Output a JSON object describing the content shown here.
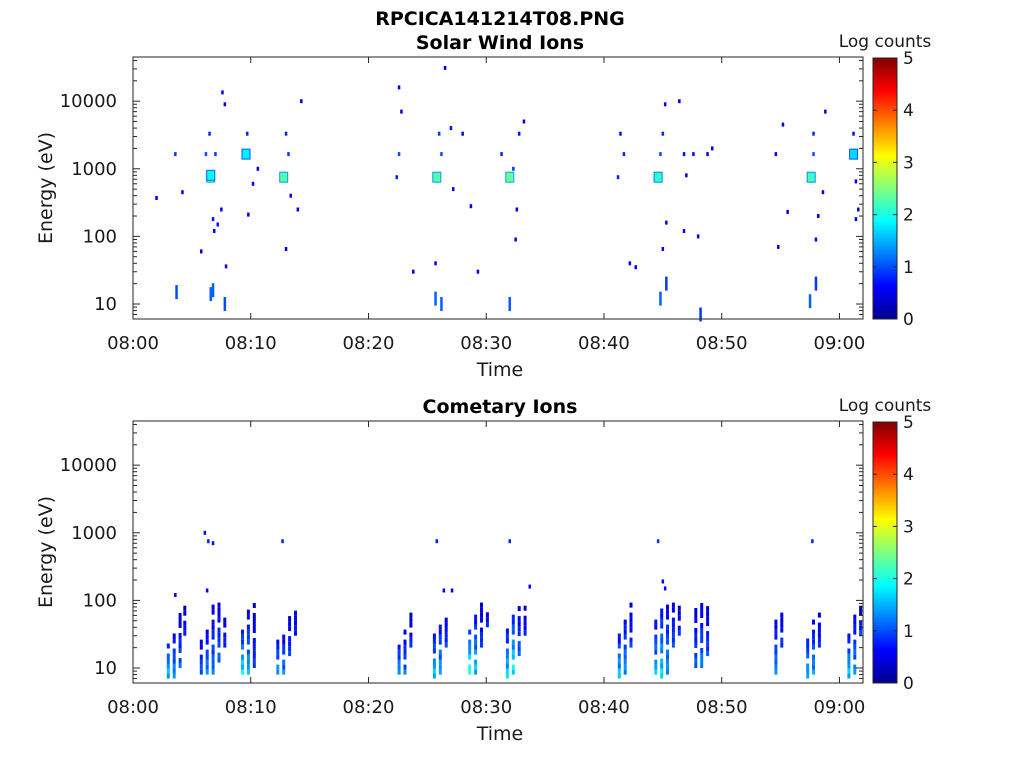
{
  "figure_title": "RPCICA141214T08.PNG",
  "chart_data": [
    {
      "type": "heatmap",
      "title": "Solar Wind Ions",
      "xlabel": "Time",
      "ylabel": "Energy (eV)",
      "y_scale": "log",
      "xlim": [
        "08:00",
        "09:02"
      ],
      "ylim": [
        6,
        45000
      ],
      "x_ticks": [
        "08:00",
        "08:10",
        "08:20",
        "08:30",
        "08:40",
        "08:50",
        "09:00"
      ],
      "y_ticks": [
        "10",
        "100",
        "1000",
        "10000"
      ],
      "colorbar": {
        "label": "Log counts",
        "range": [
          0,
          5
        ],
        "ticks": [
          "0",
          "1",
          "2",
          "3",
          "4",
          "5"
        ],
        "colormap": "jet"
      },
      "points": [
        {
          "t": "08:06.6",
          "e": 750,
          "v": 2.4
        },
        {
          "t": "08:06.6",
          "e": 800,
          "v": 1.9
        },
        {
          "t": "08:06.2",
          "e": 1650,
          "v": 1
        },
        {
          "t": "08:06.5",
          "e": 3300,
          "v": 0.8
        },
        {
          "t": "08:07.0",
          "e": 1650,
          "v": 0.9
        },
        {
          "t": "08:06.8",
          "e": 180,
          "v": 0.7
        },
        {
          "t": "08:07.2",
          "e": 150,
          "v": 0.7
        },
        {
          "t": "08:06.9",
          "e": 120,
          "v": 0.6
        },
        {
          "t": "08:07.5",
          "e": 250,
          "v": 0.6
        },
        {
          "t": "08:06.6",
          "e": 14,
          "v": 1.1
        },
        {
          "t": "08:06.8",
          "e": 16,
          "v": 1.1
        },
        {
          "t": "08:07.8",
          "e": 10,
          "v": 1
        },
        {
          "t": "08:03.6",
          "e": 1650,
          "v": 0.9
        },
        {
          "t": "08:03.7",
          "e": 15,
          "v": 1
        },
        {
          "t": "08:04.2",
          "e": 450,
          "v": 0.6
        },
        {
          "t": "08:02.0",
          "e": 370,
          "v": 0.5
        },
        {
          "t": "08:05.8",
          "e": 60,
          "v": 0.5
        },
        {
          "t": "08:07.6",
          "e": 13500,
          "v": 0.5
        },
        {
          "t": "08:07.8",
          "e": 9000,
          "v": 0.5
        },
        {
          "t": "08:07.9",
          "e": 36,
          "v": 0.6
        },
        {
          "t": "08:09.6",
          "e": 1650,
          "v": 1.8
        },
        {
          "t": "08:09.7",
          "e": 3300,
          "v": 0.8
        },
        {
          "t": "08:10.2",
          "e": 600,
          "v": 0.6
        },
        {
          "t": "08:09.8",
          "e": 210,
          "v": 0.6
        },
        {
          "t": "08:10.6",
          "e": 1000,
          "v": 0.5
        },
        {
          "t": "08:12.8",
          "e": 750,
          "v": 2.3
        },
        {
          "t": "08:13.0",
          "e": 3300,
          "v": 0.8
        },
        {
          "t": "08:13.2",
          "e": 1650,
          "v": 0.9
        },
        {
          "t": "08:13.4",
          "e": 400,
          "v": 0.6
        },
        {
          "t": "08:13.0",
          "e": 65,
          "v": 0.5
        },
        {
          "t": "08:14.3",
          "e": 10000,
          "v": 0.5
        },
        {
          "t": "08:14.0",
          "e": 250,
          "v": 0.6
        },
        {
          "t": "08:22.6",
          "e": 16000,
          "v": 0.5
        },
        {
          "t": "08:22.6",
          "e": 1650,
          "v": 1
        },
        {
          "t": "08:22.8",
          "e": 7000,
          "v": 0.5
        },
        {
          "t": "08:22.4",
          "e": 750,
          "v": 0.8
        },
        {
          "t": "08:23.8",
          "e": 30,
          "v": 0.6
        },
        {
          "t": "08:25.8",
          "e": 750,
          "v": 2.3
        },
        {
          "t": "08:26.0",
          "e": 3300,
          "v": 0.9
        },
        {
          "t": "08:26.2",
          "e": 1650,
          "v": 1
        },
        {
          "t": "08:25.7",
          "e": 12,
          "v": 1.1
        },
        {
          "t": "08:26.2",
          "e": 10,
          "v": 1.1
        },
        {
          "t": "08:25.7",
          "e": 40,
          "v": 0.6
        },
        {
          "t": "08:26.5",
          "e": 31000,
          "v": 0.5
        },
        {
          "t": "08:27.2",
          "e": 500,
          "v": 0.6
        },
        {
          "t": "08:27.0",
          "e": 4000,
          "v": 0.7
        },
        {
          "t": "08:28.0",
          "e": 3300,
          "v": 0.6
        },
        {
          "t": "08:28.7",
          "e": 280,
          "v": 0.5
        },
        {
          "t": "08:29.3",
          "e": 30,
          "v": 0.6
        },
        {
          "t": "08:32.0",
          "e": 750,
          "v": 2.4
        },
        {
          "t": "08:32.3",
          "e": 1000,
          "v": 0.9
        },
        {
          "t": "08:32.0",
          "e": 10,
          "v": 1.1
        },
        {
          "t": "08:32.8",
          "e": 3300,
          "v": 0.7
        },
        {
          "t": "08:33.2",
          "e": 5000,
          "v": 0.5
        },
        {
          "t": "08:32.6",
          "e": 250,
          "v": 0.6
        },
        {
          "t": "08:32.5",
          "e": 90,
          "v": 0.5
        },
        {
          "t": "08:31.3",
          "e": 1650,
          "v": 0.8
        },
        {
          "t": "08:41.4",
          "e": 3300,
          "v": 0.7
        },
        {
          "t": "08:41.7",
          "e": 1650,
          "v": 0.8
        },
        {
          "t": "08:42.2",
          "e": 40,
          "v": 0.6
        },
        {
          "t": "08:42.7",
          "e": 35,
          "v": 0.6
        },
        {
          "t": "08:41.2",
          "e": 750,
          "v": 0.8
        },
        {
          "t": "08:44.6",
          "e": 750,
          "v": 2.1
        },
        {
          "t": "08:44.8",
          "e": 1650,
          "v": 1
        },
        {
          "t": "08:45.0",
          "e": 3300,
          "v": 0.8
        },
        {
          "t": "08:44.8",
          "e": 12,
          "v": 1.1
        },
        {
          "t": "08:45.3",
          "e": 20,
          "v": 0.9
        },
        {
          "t": "08:45.2",
          "e": 9000,
          "v": 0.5
        },
        {
          "t": "08:45.0",
          "e": 65,
          "v": 0.6
        },
        {
          "t": "08:45.3",
          "e": 160,
          "v": 0.6
        },
        {
          "t": "08:46.8",
          "e": 1650,
          "v": 0.7
        },
        {
          "t": "08:46.4",
          "e": 10000,
          "v": 0.5
        },
        {
          "t": "08:47.0",
          "e": 800,
          "v": 0.6
        },
        {
          "t": "08:46.8",
          "e": 120,
          "v": 0.6
        },
        {
          "t": "08:47.6",
          "e": 1650,
          "v": 0.7
        },
        {
          "t": "08:48.0",
          "e": 100,
          "v": 0.6
        },
        {
          "t": "08:48.2",
          "e": 7,
          "v": 0.9
        },
        {
          "t": "08:48.8",
          "e": 1650,
          "v": 0.6
        },
        {
          "t": "08:49.2",
          "e": 2000,
          "v": 0.5
        },
        {
          "t": "08:54.6",
          "e": 1650,
          "v": 0.6
        },
        {
          "t": "08:55.2",
          "e": 4500,
          "v": 0.5
        },
        {
          "t": "08:55.6",
          "e": 230,
          "v": 0.5
        },
        {
          "t": "08:54.8",
          "e": 70,
          "v": 0.5
        },
        {
          "t": "08:57.6",
          "e": 750,
          "v": 2.2
        },
        {
          "t": "08:57.8",
          "e": 1650,
          "v": 1
        },
        {
          "t": "08:57.8",
          "e": 3300,
          "v": 0.8
        },
        {
          "t": "08:57.5",
          "e": 11,
          "v": 1.1
        },
        {
          "t": "08:58.0",
          "e": 20,
          "v": 0.9
        },
        {
          "t": "08:58.8",
          "e": 7000,
          "v": 0.5
        },
        {
          "t": "08:58.2",
          "e": 200,
          "v": 0.6
        },
        {
          "t": "08:58.0",
          "e": 90,
          "v": 0.6
        },
        {
          "t": "08:58.6",
          "e": 450,
          "v": 0.6
        },
        {
          "t": "09:01.2",
          "e": 3300,
          "v": 0.7
        },
        {
          "t": "09:01.2",
          "e": 1650,
          "v": 1.7
        },
        {
          "t": "09:01.4",
          "e": 650,
          "v": 0.6
        },
        {
          "t": "09:01.6",
          "e": 250,
          "v": 0.5
        },
        {
          "t": "09:01.4",
          "e": 180,
          "v": 0.5
        }
      ]
    },
    {
      "type": "heatmap",
      "title": "Cometary Ions",
      "xlabel": "Time",
      "ylabel": "Energy (eV)",
      "y_scale": "log",
      "xlim": [
        "08:00",
        "09:02"
      ],
      "ylim": [
        6,
        45000
      ],
      "x_ticks": [
        "08:00",
        "08:10",
        "08:20",
        "08:30",
        "08:40",
        "08:50",
        "09:00"
      ],
      "y_ticks": [
        "10",
        "100",
        "1000",
        "10000"
      ],
      "colorbar": {
        "label": "Log counts",
        "range": [
          0,
          5
        ],
        "ticks": [
          "0",
          "1",
          "2",
          "3",
          "4",
          "5"
        ],
        "colormap": "jet"
      },
      "columns": [
        {
          "t": "08:03.0",
          "e_min": 7,
          "e_max": 25,
          "peak": 1.8
        },
        {
          "t": "08:03.5",
          "e_min": 7,
          "e_max": 35,
          "peak": 1.5
        },
        {
          "t": "08:04.0",
          "e_min": 10,
          "e_max": 60,
          "peak": 1.2
        },
        {
          "t": "08:04.4",
          "e_min": 30,
          "e_max": 80,
          "peak": 0.8
        },
        {
          "t": "08:05.8",
          "e_min": 8,
          "e_max": 25,
          "peak": 1.2
        },
        {
          "t": "08:06.3",
          "e_min": 8,
          "e_max": 40,
          "peak": 1.4
        },
        {
          "t": "08:06.8",
          "e_min": 8,
          "e_max": 80,
          "peak": 1.3
        },
        {
          "t": "08:07.3",
          "e_min": 12,
          "e_max": 90,
          "peak": 1.2
        },
        {
          "t": "08:07.8",
          "e_min": 20,
          "e_max": 60,
          "peak": 0.9
        },
        {
          "t": "08:09.3",
          "e_min": 8,
          "e_max": 40,
          "peak": 2.0
        },
        {
          "t": "08:09.8",
          "e_min": 8,
          "e_max": 70,
          "peak": 1.6
        },
        {
          "t": "08:10.3",
          "e_min": 10,
          "e_max": 90,
          "peak": 1.0
        },
        {
          "t": "08:12.3",
          "e_min": 8,
          "e_max": 25,
          "peak": 1.6
        },
        {
          "t": "08:12.8",
          "e_min": 8,
          "e_max": 40,
          "peak": 1.4
        },
        {
          "t": "08:13.3",
          "e_min": 15,
          "e_max": 60,
          "peak": 1.0
        },
        {
          "t": "08:13.8",
          "e_min": 30,
          "e_max": 80,
          "peak": 0.8
        },
        {
          "t": "08:22.6",
          "e_min": 8,
          "e_max": 25,
          "peak": 1.5
        },
        {
          "t": "08:23.1",
          "e_min": 8,
          "e_max": 40,
          "peak": 1.3
        },
        {
          "t": "08:23.6",
          "e_min": 20,
          "e_max": 70,
          "peak": 0.9
        },
        {
          "t": "08:25.6",
          "e_min": 7,
          "e_max": 30,
          "peak": 1.8
        },
        {
          "t": "08:26.1",
          "e_min": 8,
          "e_max": 50,
          "peak": 1.6
        },
        {
          "t": "08:26.6",
          "e_min": 20,
          "e_max": 70,
          "peak": 1.0
        },
        {
          "t": "08:28.6",
          "e_min": 8,
          "e_max": 40,
          "peak": 2.2
        },
        {
          "t": "08:29.1",
          "e_min": 8,
          "e_max": 60,
          "peak": 1.8
        },
        {
          "t": "08:29.6",
          "e_min": 20,
          "e_max": 90,
          "peak": 1.0
        },
        {
          "t": "08:30.1",
          "e_min": 40,
          "e_max": 70,
          "peak": 0.8
        },
        {
          "t": "08:31.8",
          "e_min": 7,
          "e_max": 40,
          "peak": 1.9
        },
        {
          "t": "08:32.3",
          "e_min": 8,
          "e_max": 60,
          "peak": 2.1
        },
        {
          "t": "08:32.8",
          "e_min": 15,
          "e_max": 80,
          "peak": 1.2
        },
        {
          "t": "08:33.3",
          "e_min": 30,
          "e_max": 80,
          "peak": 0.8
        },
        {
          "t": "08:41.3",
          "e_min": 7,
          "e_max": 35,
          "peak": 1.8
        },
        {
          "t": "08:41.8",
          "e_min": 8,
          "e_max": 60,
          "peak": 1.5
        },
        {
          "t": "08:42.3",
          "e_min": 20,
          "e_max": 90,
          "peak": 1.0
        },
        {
          "t": "08:44.4",
          "e_min": 8,
          "e_max": 50,
          "peak": 1.7
        },
        {
          "t": "08:44.9",
          "e_min": 7,
          "e_max": 70,
          "peak": 1.9
        },
        {
          "t": "08:45.4",
          "e_min": 8,
          "e_max": 80,
          "peak": 1.5
        },
        {
          "t": "08:45.9",
          "e_min": 20,
          "e_max": 90,
          "peak": 1.1
        },
        {
          "t": "08:46.4",
          "e_min": 30,
          "e_max": 90,
          "peak": 0.9
        },
        {
          "t": "08:47.8",
          "e_min": 10,
          "e_max": 80,
          "peak": 1.2
        },
        {
          "t": "08:48.3",
          "e_min": 10,
          "e_max": 90,
          "peak": 1.4
        },
        {
          "t": "08:48.8",
          "e_min": 15,
          "e_max": 90,
          "peak": 1.1
        },
        {
          "t": "08:54.6",
          "e_min": 8,
          "e_max": 60,
          "peak": 1.4
        },
        {
          "t": "08:55.1",
          "e_min": 20,
          "e_max": 70,
          "peak": 1.0
        },
        {
          "t": "08:57.3",
          "e_min": 7,
          "e_max": 30,
          "peak": 1.6
        },
        {
          "t": "08:57.8",
          "e_min": 8,
          "e_max": 50,
          "peak": 1.5
        },
        {
          "t": "08:58.3",
          "e_min": 20,
          "e_max": 70,
          "peak": 0.9
        },
        {
          "t": "09:00.8",
          "e_min": 7,
          "e_max": 35,
          "peak": 1.8
        },
        {
          "t": "09:01.3",
          "e_min": 8,
          "e_max": 60,
          "peak": 1.5
        },
        {
          "t": "09:01.8",
          "e_min": 30,
          "e_max": 80,
          "peak": 1.0
        }
      ],
      "points": [
        {
          "t": "08:06.1",
          "e": 1000,
          "v": 0.7
        },
        {
          "t": "08:06.4",
          "e": 750,
          "v": 0.8
        },
        {
          "t": "08:06.8",
          "e": 700,
          "v": 0.7
        },
        {
          "t": "08:12.7",
          "e": 750,
          "v": 0.8
        },
        {
          "t": "08:25.8",
          "e": 750,
          "v": 0.8
        },
        {
          "t": "08:32.0",
          "e": 750,
          "v": 0.8
        },
        {
          "t": "08:44.6",
          "e": 750,
          "v": 0.9
        },
        {
          "t": "08:57.7",
          "e": 750,
          "v": 0.8
        },
        {
          "t": "08:03.6",
          "e": 120,
          "v": 0.6
        },
        {
          "t": "08:06.3",
          "e": 140,
          "v": 0.6
        },
        {
          "t": "08:33.7",
          "e": 160,
          "v": 0.6
        },
        {
          "t": "08:45.0",
          "e": 190,
          "v": 0.6
        },
        {
          "t": "08:45.2",
          "e": 150,
          "v": 0.6
        },
        {
          "t": "08:26.4",
          "e": 140,
          "v": 0.5
        },
        {
          "t": "08:27.1",
          "e": 140,
          "v": 0.5
        }
      ]
    }
  ]
}
